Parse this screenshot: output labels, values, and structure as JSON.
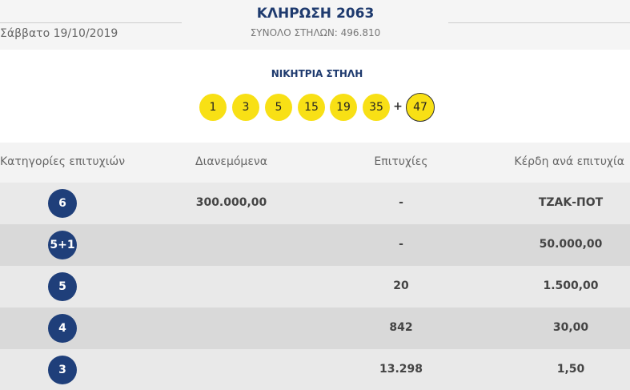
{
  "header": {
    "date": "Σάββατο 19/10/2019",
    "title": "ΚΛΗΡΩΣΗ 2063",
    "subtitle": "ΣΥΝΟΛΟ ΣΤΗΛΩΝ: 496.810"
  },
  "winning": {
    "label": "ΝΙΚΗΤΡΙΑ ΣΤΗΛΗ",
    "numbers": [
      "1",
      "3",
      "5",
      "15",
      "19",
      "35"
    ],
    "plus": "+",
    "bonus": "47"
  },
  "table": {
    "headers": [
      "Κατηγορίες επιτυχιών",
      "Διανεμόμενα",
      "Επιτυχίες",
      "Κέρδη ανά επιτυχία"
    ],
    "rows": [
      {
        "category": "6",
        "distributed": "300.000,00",
        "winners": "-",
        "prize": "ΤΖΑΚ-ΠΟΤ"
      },
      {
        "category": "5+1",
        "winners": "-",
        "prize": "50.000,00"
      },
      {
        "category": "5",
        "winners": "20",
        "prize": "1.500,00"
      },
      {
        "category": "4",
        "winners": "842",
        "prize": "30,00"
      },
      {
        "category": "3",
        "winners": "13.298",
        "prize": "1,50"
      }
    ]
  }
}
